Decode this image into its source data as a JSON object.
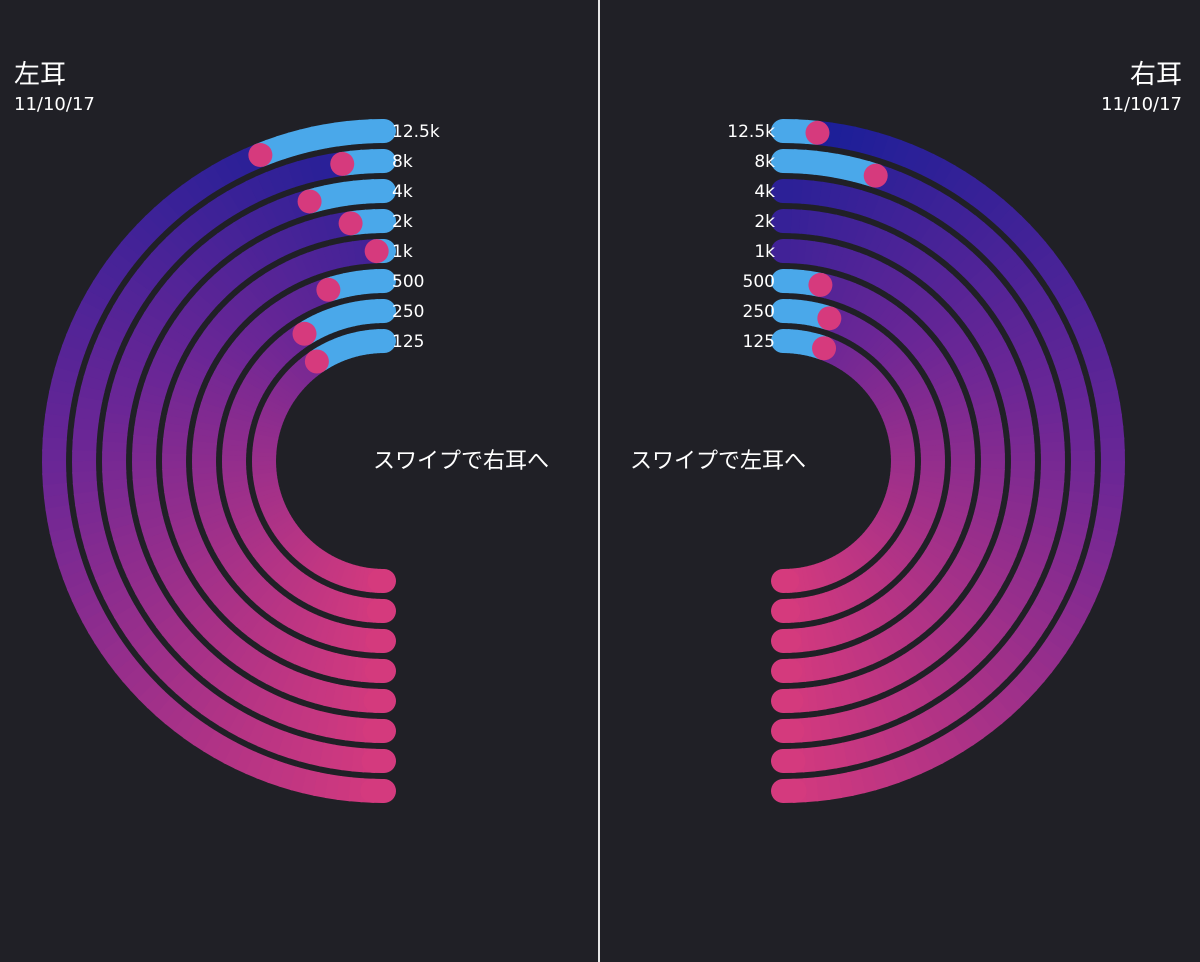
{
  "left": {
    "title": "左耳",
    "date": "11/10/17",
    "swipe_hint": "スワイプで右耳へ",
    "frequencies": [
      "125",
      "250",
      "500",
      "1k",
      "2k",
      "4k",
      "8k",
      "12.5k"
    ],
    "blue_fraction": [
      0.185,
      0.175,
      0.105,
      0.01,
      0.04,
      0.09,
      0.04,
      0.125
    ]
  },
  "right": {
    "title": "右耳",
    "date": "11/10/17",
    "swipe_hint": "スワイプで左耳へ",
    "frequencies": [
      "125",
      "250",
      "500",
      "1k",
      "2k",
      "4k",
      "8k",
      "12.5k"
    ],
    "blue_fraction": [
      0.115,
      0.1,
      0.07,
      0.0,
      0.0,
      0.0,
      0.1,
      0.03
    ]
  },
  "colors": {
    "background": "#202026",
    "divider": "#e6e6e6",
    "blue": "#4aa8ea",
    "pink": "#d63a7d",
    "purple": "#6a2696",
    "navy": "#161e98"
  }
}
